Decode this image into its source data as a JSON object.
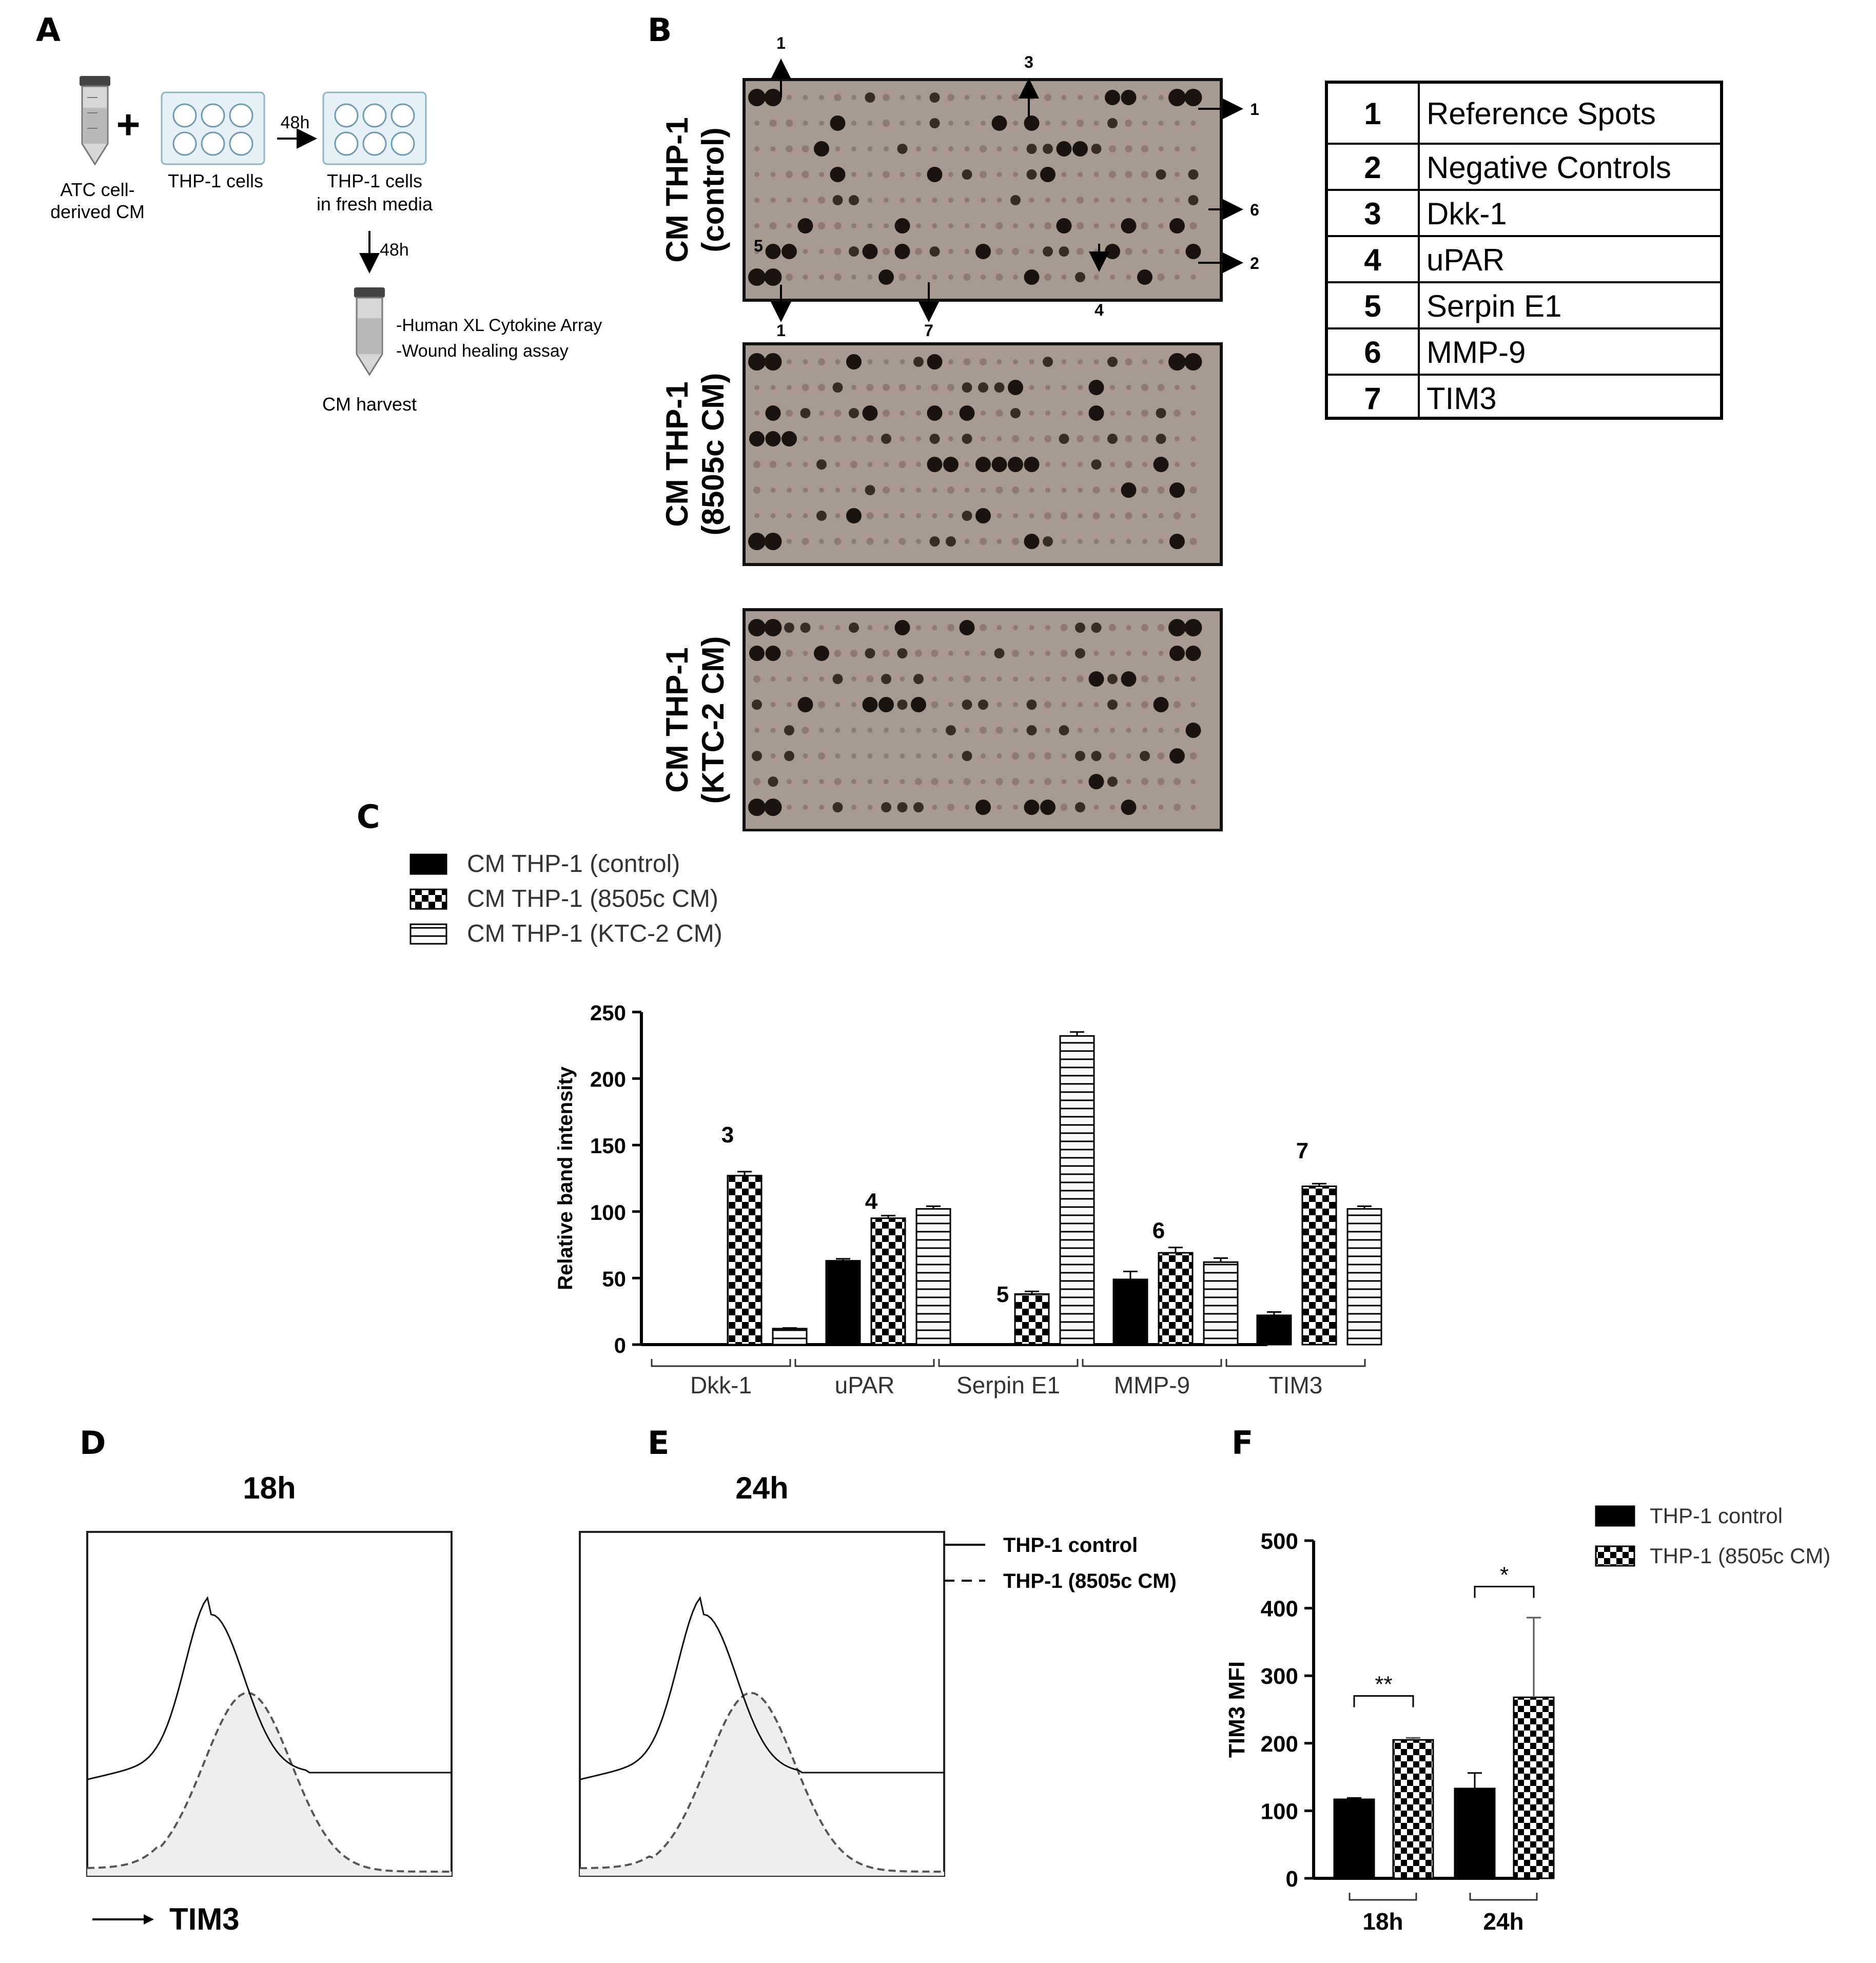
{
  "panels": {
    "A": "A",
    "B": "B",
    "C": "C",
    "D": "D",
    "E": "E",
    "F": "F"
  },
  "panel_a": {
    "tube1": "ATC cell-\nderived CM",
    "plate1": "THP-1 cells",
    "plus": "+",
    "arrow1": "48h",
    "plate2": "THP-1 cells\nin fresh media",
    "arrow2": "48h",
    "assay1": "-Human XL Cytokine Array",
    "assay2": "-Wound healing assay",
    "harvest": "CM harvest"
  },
  "panel_b": {
    "blots": [
      {
        "line1": "CM THP-1",
        "line2": "(control)"
      },
      {
        "line1": "CM THP-1",
        "line2": "(8505c CM)"
      },
      {
        "line1": "CM THP-1",
        "line2": "(KTC-2 CM)"
      }
    ],
    "callouts": {
      "top_left": "1",
      "top_mid": "3",
      "right_top": "1",
      "right_mid": "6",
      "right_bot": "2",
      "left_spot": "5",
      "bot_left": "1",
      "bot_mid": "7",
      "bot_right": "4"
    },
    "legend": [
      {
        "num": "1",
        "label": "Reference Spots"
      },
      {
        "num": "2",
        "label": "Negative Controls"
      },
      {
        "num": "3",
        "label": "Dkk-1"
      },
      {
        "num": "4",
        "label": "uPAR"
      },
      {
        "num": "5",
        "label": "Serpin E1"
      },
      {
        "num": "6",
        "label": "MMP-9"
      },
      {
        "num": "7",
        "label": "TIM3"
      }
    ]
  },
  "colors": {
    "black": "#000000",
    "grey": "#555555",
    "blot": "#a7968b",
    "fill": "#eeeeee"
  },
  "chart_data": [
    {
      "id": "C",
      "type": "bar",
      "ylabel": "Relative band intensity",
      "ylim": [
        0,
        250
      ],
      "yticks": [
        "0",
        "50",
        "100",
        "150",
        "200",
        "250"
      ],
      "categories": [
        "Dkk-1",
        "uPAR",
        "Serpin E1",
        "MMP-9",
        "TIM3"
      ],
      "annotations": [
        "3",
        "4",
        "5",
        "6",
        "7"
      ],
      "series": [
        {
          "name": "CM THP-1 (control)",
          "pattern": "solid",
          "values": [
            0,
            63,
            0,
            49,
            22
          ],
          "errors": [
            0,
            1.5,
            0,
            6,
            2.5
          ]
        },
        {
          "name": "CM THP-1 (8505c CM)",
          "pattern": "checker",
          "values": [
            127,
            95,
            38,
            69,
            119
          ],
          "errors": [
            3,
            2,
            2,
            4,
            2
          ]
        },
        {
          "name": "CM THP-1 (KTC-2 CM)",
          "pattern": "hlines",
          "values": [
            12,
            102,
            232,
            62,
            102
          ],
          "errors": [
            0.5,
            2,
            3,
            3,
            2
          ]
        }
      ],
      "legend": [
        "CM THP-1 (control)",
        "CM THP-1 (8505c CM)",
        "CM THP-1 (KTC-2 CM)"
      ]
    },
    {
      "id": "D",
      "type": "line",
      "title": "18h",
      "xlabel": "TIM3",
      "series": [
        {
          "name": "THP-1 control",
          "style": "solid"
        },
        {
          "name": "THP-1 (8505c CM)",
          "style": "dashed",
          "filled": true
        }
      ]
    },
    {
      "id": "E",
      "type": "line",
      "title": "24h",
      "legend": [
        "THP-1 control",
        "THP-1 (8505c CM)"
      ],
      "series": [
        {
          "name": "THP-1 control",
          "style": "solid"
        },
        {
          "name": "THP-1 (8505c CM)",
          "style": "dashed",
          "filled": true
        }
      ]
    },
    {
      "id": "F",
      "type": "bar",
      "ylabel": "TIM3 MFI",
      "ylim": [
        0,
        500
      ],
      "yticks": [
        "0",
        "100",
        "200",
        "300",
        "400",
        "500"
      ],
      "categories": [
        "18h",
        "24h"
      ],
      "significance": [
        "**",
        "*"
      ],
      "series": [
        {
          "name": "THP-1 control",
          "pattern": "solid",
          "values": [
            117,
            133
          ],
          "errors": [
            2,
            23
          ]
        },
        {
          "name": "THP-1  (8505c CM)",
          "pattern": "checker",
          "values": [
            205,
            268
          ],
          "errors": [
            3,
            118
          ]
        }
      ],
      "legend": [
        "THP-1 control",
        "THP-1  (8505c CM)"
      ]
    }
  ]
}
